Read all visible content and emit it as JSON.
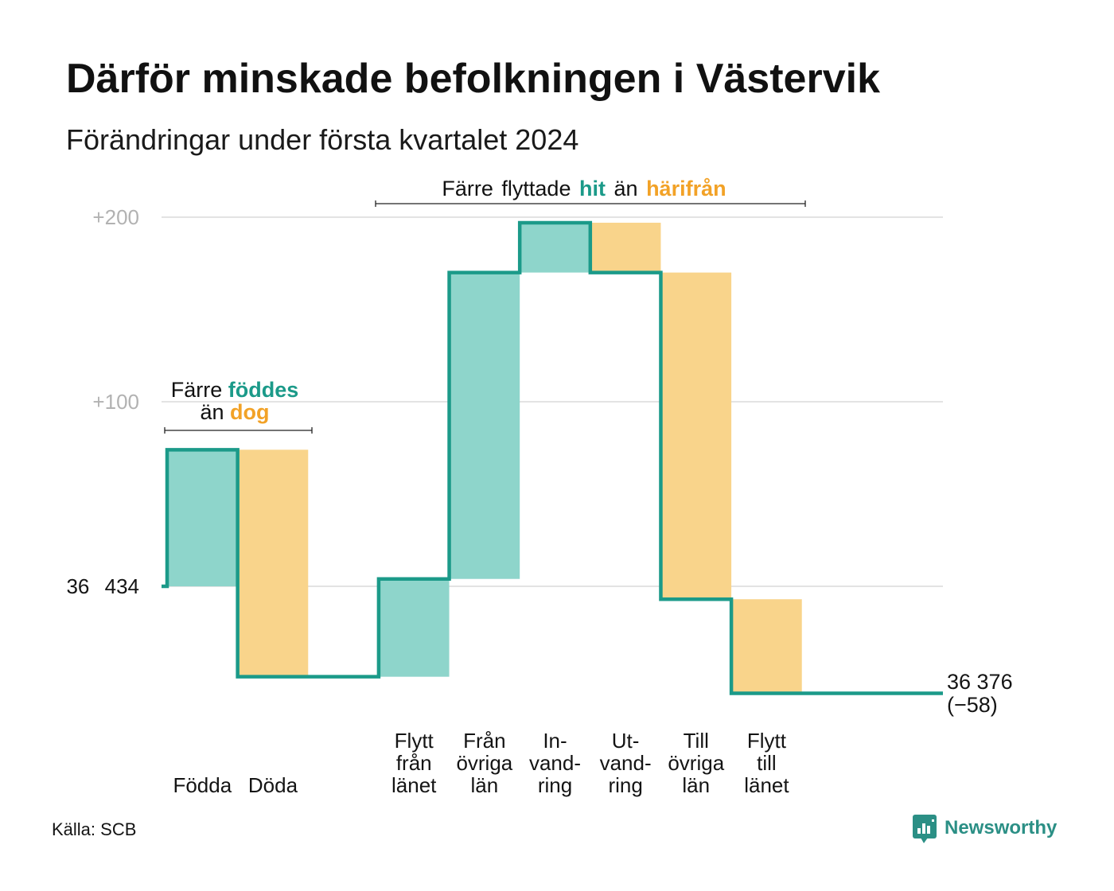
{
  "title": "Därför minskade befolkningen i Västervik",
  "subtitle": "Förändringar under första kvartalet 2024",
  "chart_data": {
    "type": "bar",
    "categories": [
      [
        "Födda"
      ],
      [
        "Döda"
      ],
      [
        "Flytt",
        "från",
        "länet"
      ],
      [
        "Från",
        "övriga",
        "län"
      ],
      [
        "In-",
        "vand-",
        "ring"
      ],
      [
        "Ut-",
        "vand-",
        "ring"
      ],
      [
        "Till",
        "övriga",
        "län"
      ],
      [
        "Flytt",
        "till",
        "länet"
      ]
    ],
    "values": [
      74,
      -123,
      53,
      166,
      27,
      -27,
      -177,
      -51
    ],
    "start_value": 36434,
    "end_value": 36376,
    "net_change": -58,
    "yticks": [
      {
        "value": 0,
        "label": "36 434"
      },
      {
        "value": 100,
        "label": "+100"
      },
      {
        "value": 200,
        "label": "+200"
      }
    ],
    "end_label": "36 376",
    "end_change_label": "(−58)",
    "grid": true,
    "annotations": {
      "births_deaths": {
        "line1": [
          "Färre",
          "föddes"
        ],
        "line2": [
          "än",
          "dog"
        ]
      },
      "migration": [
        "Färre flyttade",
        "hit",
        "än",
        "härifrån"
      ]
    }
  },
  "colors": {
    "inflow_fill": "#8ed5cb",
    "outflow_fill": "#f9d48b",
    "line": "#1b9a89",
    "inflow_text": "#1b9a89",
    "outflow_text": "#f2a227",
    "grid": "#e3e3e3",
    "brand": "#2b8f85"
  },
  "footer": {
    "source": "Källa: SCB",
    "brand": "Newsworthy",
    "brand_icon": "newsworthy-logo-icon"
  }
}
